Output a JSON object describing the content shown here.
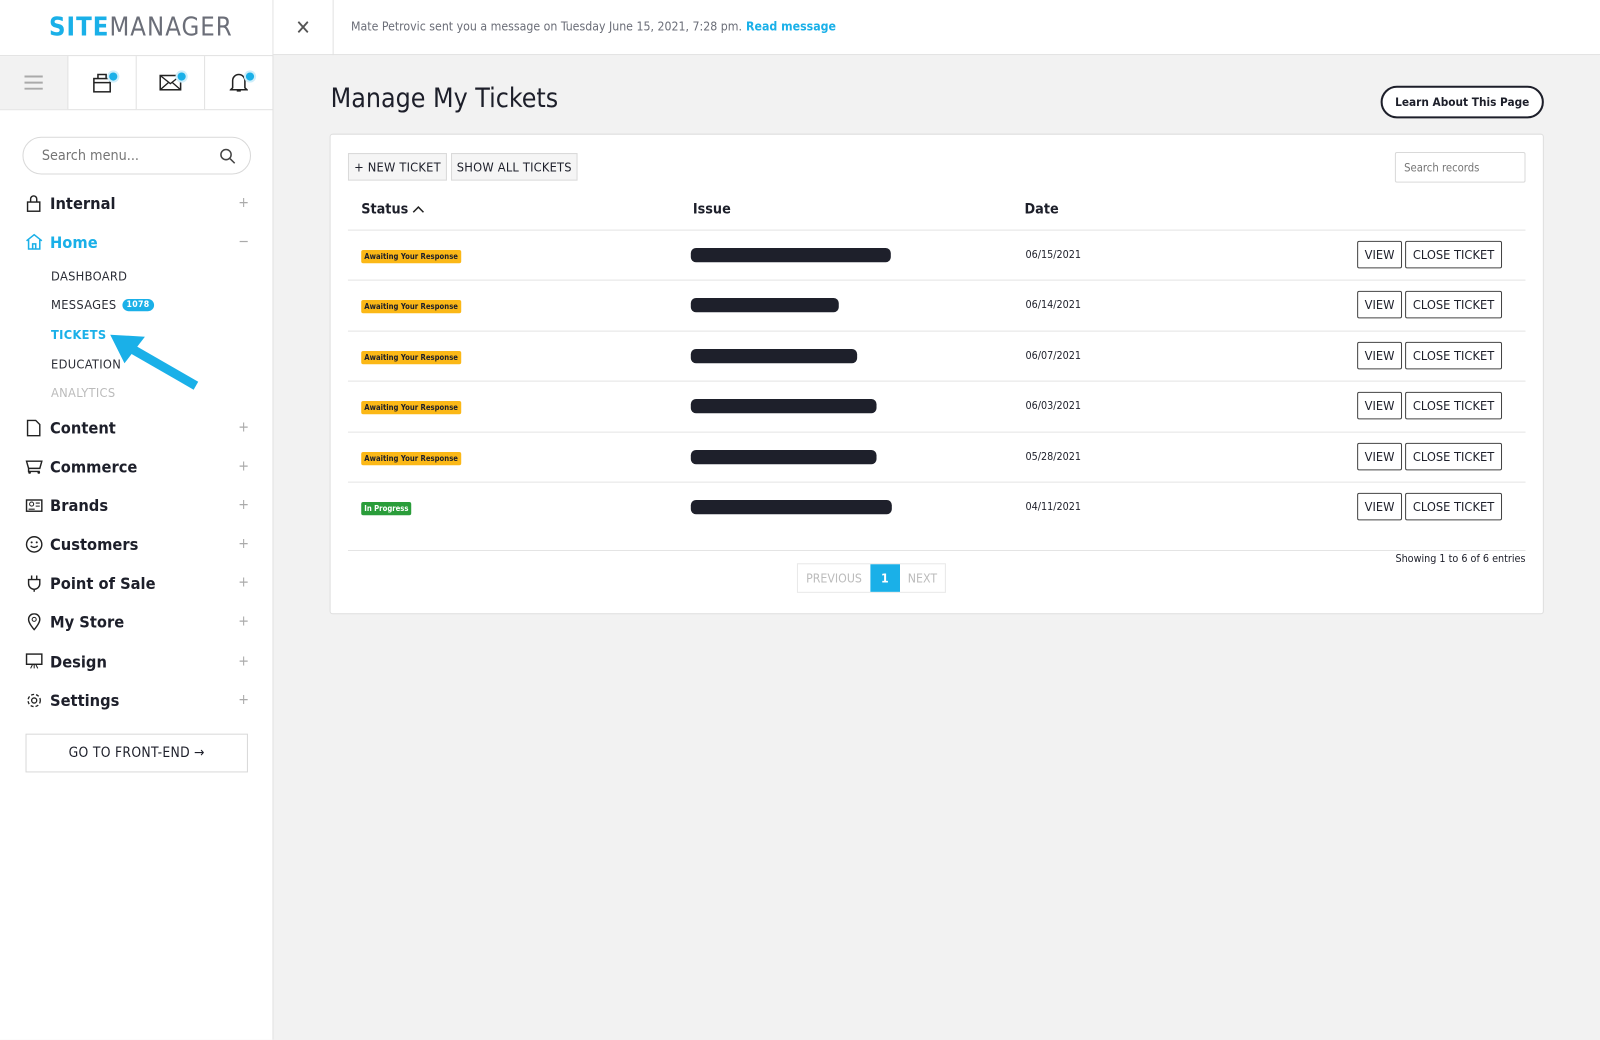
{
  "brand": {
    "bold": "SITE",
    "light": "MANAGER"
  },
  "notification": {
    "text": "Mate Petrovic sent you a message on Tuesday June 15, 2021, 7:28 pm.",
    "link": "Read message"
  },
  "sidebar": {
    "search_placeholder": "Search menu...",
    "sections": [
      {
        "label": "Internal",
        "toggle": "+",
        "icon": "lock-icon"
      },
      {
        "label": "Home",
        "toggle": "−",
        "icon": "home-icon"
      },
      {
        "label": "Content",
        "toggle": "+",
        "icon": "file-icon"
      },
      {
        "label": "Commerce",
        "toggle": "+",
        "icon": "cart-icon"
      },
      {
        "label": "Brands",
        "toggle": "+",
        "icon": "id-card-icon"
      },
      {
        "label": "Customers",
        "toggle": "+",
        "icon": "smiley-icon"
      },
      {
        "label": "Point of Sale",
        "toggle": "+",
        "icon": "plug-icon"
      },
      {
        "label": "My Store",
        "toggle": "+",
        "icon": "map-pin-icon"
      },
      {
        "label": "Design",
        "toggle": "+",
        "icon": "monitor-icon"
      },
      {
        "label": "Settings",
        "toggle": "+",
        "icon": "gear-icon"
      }
    ],
    "home_sub": [
      {
        "label": "DASHBOARD"
      },
      {
        "label": "MESSAGES",
        "badge": "1078"
      },
      {
        "label": "TICKETS"
      },
      {
        "label": "EDUCATION"
      },
      {
        "label": "ANALYTICS"
      }
    ],
    "front_end": "GO TO FRONT-END →"
  },
  "page": {
    "title": "Manage My Tickets",
    "learn": "Learn About This Page"
  },
  "toolbar": {
    "new_ticket": "+ NEW TICKET",
    "show_all": "SHOW ALL TICKETS",
    "search_placeholder": "Search records"
  },
  "table": {
    "headers": {
      "status": "Status",
      "issue": "Issue",
      "date": "Date"
    },
    "rows": [
      {
        "status": "Awaiting Your Response",
        "date": "06/15/2021"
      },
      {
        "status": "Awaiting Your Response",
        "date": "06/14/2021"
      },
      {
        "status": "Awaiting Your Response",
        "date": "06/07/2021"
      },
      {
        "status": "Awaiting Your Response",
        "date": "06/03/2021"
      },
      {
        "status": "Awaiting Your Response",
        "date": "05/28/2021"
      },
      {
        "status": "In Progress",
        "date": "04/11/2021"
      }
    ],
    "view": "VIEW",
    "close": "CLOSE TICKET"
  },
  "pagination": {
    "prev": "PREVIOUS",
    "current": "1",
    "next": "NEXT",
    "showing": "Showing 1 to 6 of 6 entries"
  },
  "colors": {
    "accent": "#1ab0e8",
    "awaiting": "#fbb817",
    "in_progress": "#2a9d3a"
  }
}
